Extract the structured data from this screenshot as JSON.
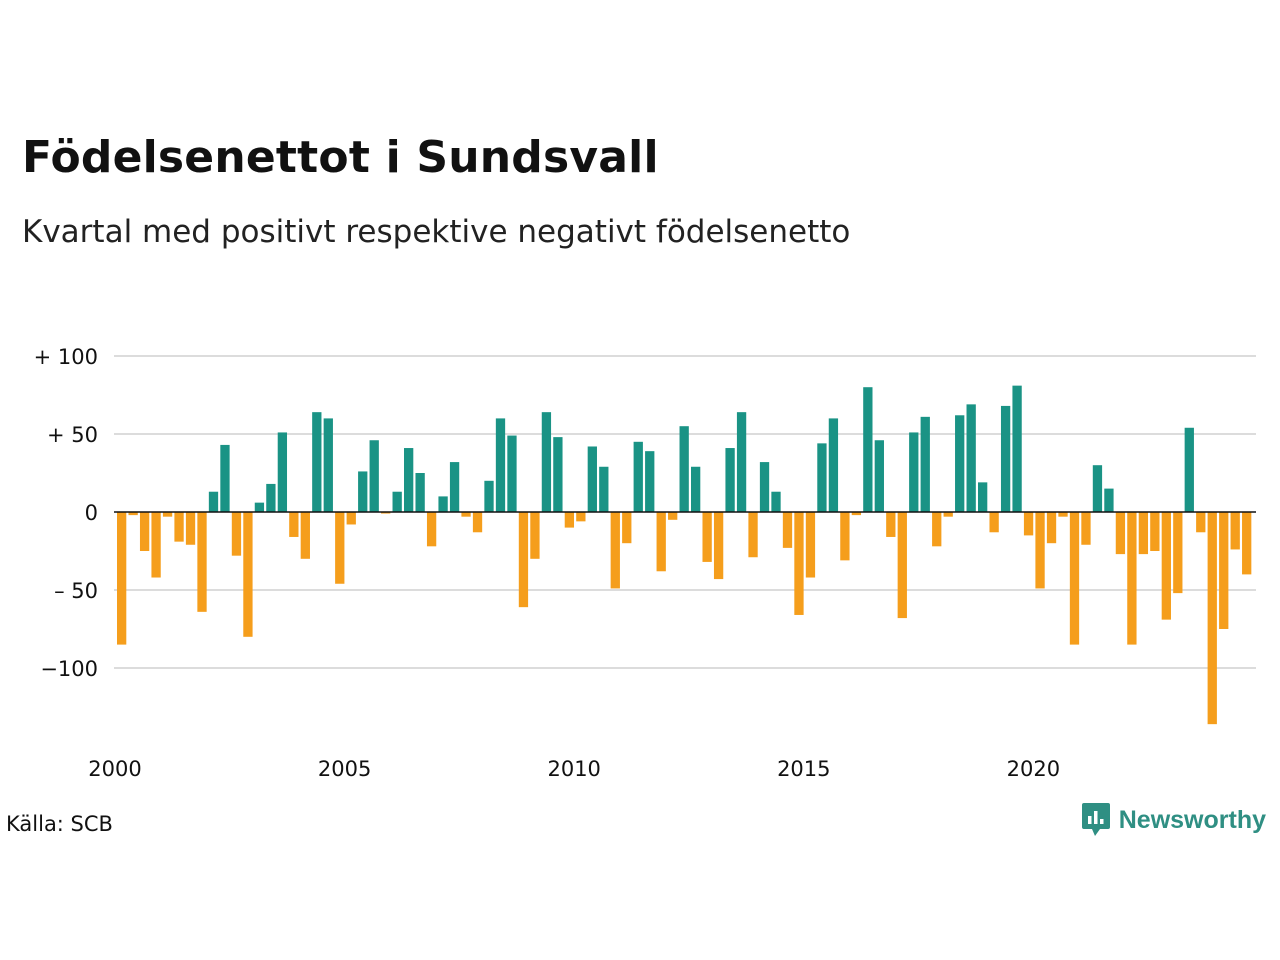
{
  "title": "Födelsenettot i Sundsvall",
  "subtitle": "Kvartal med positivt respektive negativt födelsenetto",
  "source": "Källa: SCB",
  "brand": "Newsworthy",
  "colors": {
    "positive": "#1a9385",
    "negative": "#f59e1c",
    "grid": "#dcdcdc",
    "zero": "#111111"
  },
  "chart_data": {
    "type": "bar",
    "x_start": "2000 Q1",
    "ylim": [
      -140,
      100
    ],
    "yticks": [
      {
        "value": 100,
        "label": "+ 100"
      },
      {
        "value": 50,
        "label": "+  50"
      },
      {
        "value": 0,
        "label": "0"
      },
      {
        "value": -50,
        "label": "– 50"
      },
      {
        "value": -100,
        "label": "−100"
      }
    ],
    "xticks": [
      "2000",
      "2005",
      "2010",
      "2015",
      "2020"
    ],
    "values": [
      -85,
      -2,
      -25,
      -42,
      -3,
      -19,
      -21,
      -64,
      13,
      43,
      -28,
      -80,
      6,
      18,
      51,
      -16,
      -30,
      64,
      60,
      -46,
      -8,
      26,
      46,
      -1,
      13,
      41,
      25,
      -22,
      10,
      32,
      -3,
      -13,
      20,
      60,
      49,
      -61,
      -30,
      64,
      48,
      -10,
      -6,
      42,
      29,
      -49,
      -20,
      45,
      39,
      -38,
      -5,
      55,
      29,
      -32,
      -43,
      41,
      64,
      -29,
      32,
      13,
      -23,
      -66,
      -42,
      44,
      60,
      -31,
      -2,
      80,
      46,
      -16,
      -68,
      51,
      61,
      -22,
      -3,
      62,
      69,
      19,
      -13,
      68,
      81,
      -15,
      -49,
      -20,
      -3,
      -85,
      -21,
      30,
      15,
      -27,
      -85,
      -27,
      -25,
      -69,
      -52,
      54,
      -13,
      -136,
      -75,
      -24,
      -40
    ]
  }
}
